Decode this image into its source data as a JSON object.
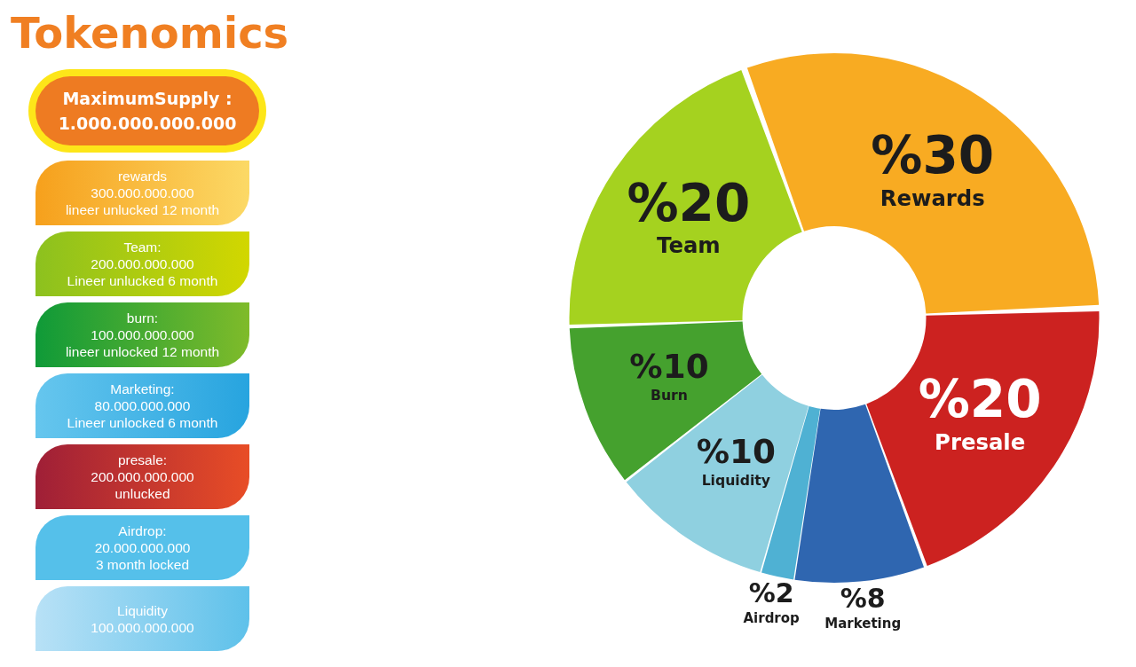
{
  "chart_data": [
    {
      "type": "other",
      "title": "Tokenomics",
      "annotations": [
        "MaximumSupply :\n1.000.000.000.000",
        "rewards\n300.000.000.000\nlineer unlucked 12 month",
        "Team:\n200.000.000.000\nLineer unlucked 6 month",
        "burn:\n100.000.000.000\nlineer unlocked 12 month",
        "Marketing:\n80.000.000.000\nLineer unlocked 6 month",
        "presale:\n200.000.000.000\nunlucked",
        "Airdrop:\n20.000.000.000\n3 month locked",
        "Liquidity\n100.000.000.000"
      ]
    },
    {
      "type": "donut",
      "categories": [
        "Rewards",
        "Presale",
        "Marketing",
        "Airdrop",
        "Liquidity",
        "Burn",
        "Team"
      ],
      "values": [
        30,
        20,
        8,
        2,
        10,
        10,
        20
      ],
      "colors": [
        "#f8ab22",
        "#cc2220",
        "#2f66b0",
        "#4fb1d3",
        "#8fd0e0",
        "#45a12e",
        "#a5d21f"
      ],
      "value_labels": [
        "%30",
        "%20",
        "%8",
        "%2",
        "%10",
        "%10",
        "%20"
      ]
    }
  ]
}
